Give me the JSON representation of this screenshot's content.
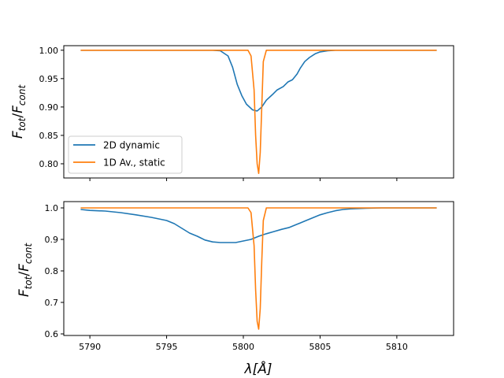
{
  "chart_data": [
    {
      "type": "line",
      "panel": "top",
      "ylabel_main": "F",
      "ylabel_sub1": "tot",
      "ylabel_sep": "/",
      "ylabel_main2": "F",
      "ylabel_sub2": "cont",
      "xlim": [
        5788.3,
        5813.7
      ],
      "ylim": [
        0.775,
        1.008
      ],
      "yticks": [
        0.8,
        0.85,
        0.9,
        0.95,
        1.0
      ],
      "ytick_labels": [
        "0.80",
        "0.85",
        "0.90",
        "0.95",
        "1.00"
      ],
      "xticks": [
        5790,
        5795,
        5800,
        5805,
        5810
      ],
      "show_xtick_labels": false,
      "grid": false,
      "legend": {
        "placement": "lower-left"
      },
      "series": [
        {
          "name": "2D dynamic",
          "color": "#1f77b4",
          "x": [
            5789.4,
            5798.0,
            5798.5,
            5799.0,
            5799.3,
            5799.6,
            5799.9,
            5800.2,
            5800.6,
            5800.9,
            5801.2,
            5801.5,
            5801.9,
            5802.2,
            5802.6,
            5802.9,
            5803.2,
            5803.5,
            5803.7,
            5804.0,
            5804.3,
            5804.7,
            5805.0,
            5805.5,
            5806.0,
            5808.0,
            5812.6
          ],
          "y": [
            1.0,
            1.0,
            0.999,
            0.99,
            0.97,
            0.94,
            0.92,
            0.905,
            0.895,
            0.893,
            0.9,
            0.912,
            0.922,
            0.93,
            0.936,
            0.944,
            0.948,
            0.958,
            0.968,
            0.98,
            0.987,
            0.994,
            0.997,
            0.999,
            1.0,
            1.0,
            1.0
          ]
        },
        {
          "name": "1D Av., static",
          "color": "#ff7f0e",
          "x": [
            5789.4,
            5800.3,
            5800.5,
            5800.7,
            5800.8,
            5800.9,
            5801.0,
            5801.1,
            5801.2,
            5801.3,
            5801.5,
            5812.6
          ],
          "y": [
            1.0,
            1.0,
            0.99,
            0.93,
            0.85,
            0.8,
            0.783,
            0.82,
            0.9,
            0.98,
            1.0,
            1.0
          ]
        }
      ]
    },
    {
      "type": "line",
      "panel": "bottom",
      "ylabel_main": "F",
      "ylabel_sub1": "tot",
      "ylabel_sep": "/",
      "ylabel_main2": "F",
      "ylabel_sub2": "cont",
      "xlabel_symbol": "λ",
      "xlabel_unit": "[Å]",
      "xlim": [
        5788.3,
        5813.7
      ],
      "ylim": [
        0.595,
        1.02
      ],
      "yticks": [
        0.6,
        0.7,
        0.8,
        0.9,
        1.0
      ],
      "ytick_labels": [
        "0.6",
        "0.7",
        "0.8",
        "0.9",
        "1.0"
      ],
      "xticks": [
        5790,
        5795,
        5800,
        5805,
        5810
      ],
      "xtick_labels": [
        "5790",
        "5795",
        "5800",
        "5805",
        "5810"
      ],
      "show_xtick_labels": true,
      "grid": false,
      "series": [
        {
          "name": "2D dynamic",
          "color": "#1f77b4",
          "x": [
            5789.4,
            5790.0,
            5791.0,
            5792.0,
            5793.0,
            5794.0,
            5795.0,
            5795.5,
            5796.0,
            5796.5,
            5797.0,
            5797.5,
            5798.0,
            5798.5,
            5799.0,
            5799.5,
            5800.0,
            5800.5,
            5801.0,
            5801.5,
            5802.0,
            5802.5,
            5803.0,
            5803.5,
            5804.0,
            5804.5,
            5805.0,
            5805.5,
            5806.0,
            5806.5,
            5807.0,
            5808.0,
            5809.0,
            5812.6
          ],
          "y": [
            0.995,
            0.992,
            0.99,
            0.985,
            0.978,
            0.97,
            0.96,
            0.95,
            0.935,
            0.92,
            0.91,
            0.898,
            0.892,
            0.89,
            0.89,
            0.89,
            0.895,
            0.9,
            0.91,
            0.918,
            0.925,
            0.932,
            0.938,
            0.948,
            0.958,
            0.968,
            0.978,
            0.985,
            0.991,
            0.995,
            0.997,
            0.999,
            1.0,
            1.0
          ]
        },
        {
          "name": "1D Av., static",
          "color": "#ff7f0e",
          "x": [
            5789.4,
            5800.3,
            5800.5,
            5800.7,
            5800.8,
            5800.9,
            5801.0,
            5801.1,
            5801.2,
            5801.3,
            5801.5,
            5812.6
          ],
          "y": [
            1.0,
            1.0,
            0.985,
            0.88,
            0.74,
            0.64,
            0.615,
            0.68,
            0.83,
            0.96,
            1.0,
            1.0
          ]
        }
      ]
    }
  ]
}
